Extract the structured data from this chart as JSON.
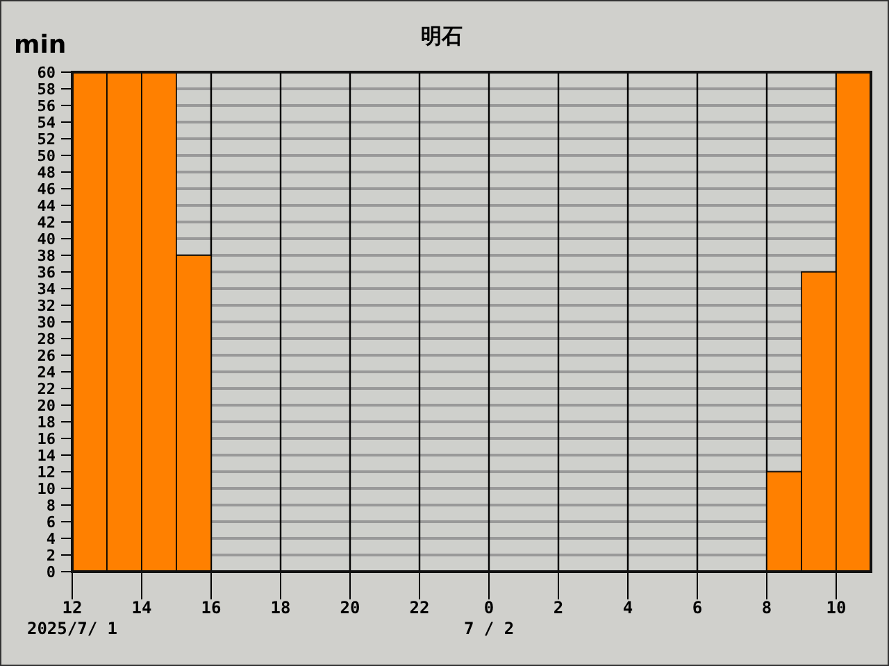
{
  "chart_data": {
    "type": "bar",
    "title": "明石",
    "ylabel": "min",
    "x": [
      "2025-07-01T12:30",
      "2025-07-01T13:30",
      "2025-07-01T14:30",
      "2025-07-01T15:30",
      "2025-07-01T16:30",
      "2025-07-01T17:30",
      "2025-07-01T18:30",
      "2025-07-01T19:30",
      "2025-07-01T20:30",
      "2025-07-01T21:30",
      "2025-07-01T22:30",
      "2025-07-01T23:30",
      "2025-07-02T00:30",
      "2025-07-02T01:30",
      "2025-07-02T02:30",
      "2025-07-02T03:30",
      "2025-07-02T04:30",
      "2025-07-02T05:30",
      "2025-07-02T06:30",
      "2025-07-02T07:30",
      "2025-07-02T08:30",
      "2025-07-02T09:30",
      "2025-07-02T10:30"
    ],
    "series": [
      {
        "color": "#ff8000",
        "values": [
          60,
          60,
          60,
          38,
          0,
          0,
          0,
          0,
          0,
          0,
          0,
          0,
          0,
          0,
          0,
          0,
          0,
          0,
          0,
          0,
          12,
          36,
          60
        ]
      }
    ],
    "xlim": [
      "2025-07-01T12:00",
      "2025-07-02T11:00"
    ],
    "xticks": [
      {
        "value": "2025-07-01T12:00",
        "label": "12\n2025/7/ 1"
      },
      {
        "value": "2025-07-01T14:00",
        "label": "14"
      },
      {
        "value": "2025-07-01T16:00",
        "label": "16"
      },
      {
        "value": "2025-07-01T18:00",
        "label": "18"
      },
      {
        "value": "2025-07-01T20:00",
        "label": "20"
      },
      {
        "value": "2025-07-01T22:00",
        "label": "22"
      },
      {
        "value": "2025-07-02T00:00",
        "label": "0\n7 / 2"
      },
      {
        "value": "2025-07-02T02:00",
        "label": "2"
      },
      {
        "value": "2025-07-02T04:00",
        "label": "4"
      },
      {
        "value": "2025-07-02T06:00",
        "label": "6"
      },
      {
        "value": "2025-07-02T08:00",
        "label": "8"
      },
      {
        "value": "2025-07-02T10:00",
        "label": "10"
      }
    ],
    "ylim": [
      0,
      60
    ],
    "yticks": [
      0,
      2,
      4,
      6,
      8,
      10,
      12,
      14,
      16,
      18,
      20,
      22,
      24,
      26,
      28,
      30,
      32,
      34,
      36,
      38,
      40,
      42,
      44,
      46,
      48,
      50,
      52,
      54,
      56,
      58,
      60
    ],
    "grid": true
  }
}
